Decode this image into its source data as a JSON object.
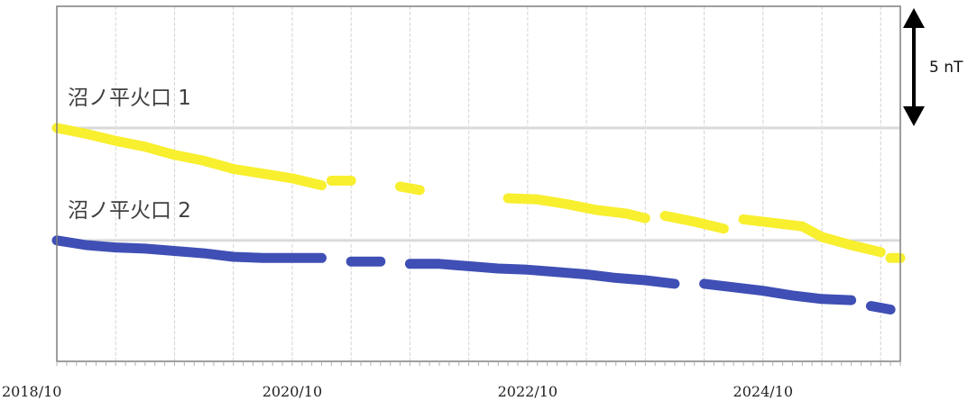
{
  "chart_data": {
    "type": "line",
    "x_axis": {
      "min": "2018/10",
      "max": "2025/12",
      "tick_labels": [
        "2018/10",
        "2020/10",
        "2022/10",
        "2024/10"
      ],
      "minor_ticks": "monthly",
      "major_ticks": "every 6 months"
    },
    "grid": true,
    "scale_bar": {
      "label": "5 nT",
      "value": 5,
      "unit": "nT"
    },
    "series": [
      {
        "name": "沼ノ平火口 1",
        "color": "#f8ef2e",
        "baseline_nT": 0,
        "segments": [
          [
            [
              "2018/10",
              0.0
            ],
            [
              "2019/01",
              -0.25
            ],
            [
              "2019/04",
              -0.55
            ],
            [
              "2019/07",
              -0.8
            ],
            [
              "2019/10",
              -1.15
            ],
            [
              "2020/01",
              -1.4
            ],
            [
              "2020/04",
              -1.75
            ],
            [
              "2020/07",
              -1.95
            ],
            [
              "2020/10",
              -2.15
            ],
            [
              "2021/01",
              -2.45
            ]
          ],
          [
            [
              "2021/02",
              -2.25
            ],
            [
              "2021/04",
              -2.25
            ]
          ],
          [
            [
              "2021/09",
              -2.5
            ],
            [
              "2021/11",
              -2.65
            ]
          ],
          [
            [
              "2022/08",
              -3.0
            ],
            [
              "2022/11",
              -3.05
            ],
            [
              "2023/02",
              -3.25
            ],
            [
              "2023/05",
              -3.5
            ],
            [
              "2023/08",
              -3.65
            ],
            [
              "2023/10",
              -3.85
            ]
          ],
          [
            [
              "2023/12",
              -3.75
            ],
            [
              "2024/03",
              -4.0
            ],
            [
              "2024/06",
              -4.3
            ]
          ],
          [
            [
              "2024/08",
              -3.9
            ],
            [
              "2024/11",
              -4.05
            ],
            [
              "2025/02",
              -4.2
            ],
            [
              "2025/04",
              -4.65
            ],
            [
              "2025/07",
              -5.0
            ],
            [
              "2025/10",
              -5.3
            ]
          ],
          [
            [
              "2025/11",
              -5.55
            ],
            [
              "2025/12",
              -5.55
            ]
          ]
        ]
      },
      {
        "name": "沼ノ平火口 2",
        "color": "#3f4fb5",
        "baseline_nT": -4.8,
        "segments": [
          [
            [
              "2018/10",
              -4.8
            ],
            [
              "2019/01",
              -5.0
            ],
            [
              "2019/04",
              -5.1
            ],
            [
              "2019/07",
              -5.15
            ],
            [
              "2019/10",
              -5.25
            ],
            [
              "2020/01",
              -5.35
            ],
            [
              "2020/04",
              -5.5
            ],
            [
              "2020/07",
              -5.55
            ],
            [
              "2020/10",
              -5.55
            ],
            [
              "2021/01",
              -5.55
            ]
          ],
          [
            [
              "2021/04",
              -5.7
            ],
            [
              "2021/07",
              -5.7
            ]
          ],
          [
            [
              "2021/10",
              -5.8
            ],
            [
              "2022/01",
              -5.8
            ],
            [
              "2022/04",
              -5.9
            ],
            [
              "2022/07",
              -6.0
            ],
            [
              "2022/10",
              -6.05
            ],
            [
              "2023/01",
              -6.15
            ],
            [
              "2023/04",
              -6.25
            ],
            [
              "2023/07",
              -6.4
            ],
            [
              "2023/10",
              -6.5
            ],
            [
              "2024/01",
              -6.65
            ]
          ],
          [
            [
              "2024/04",
              -6.65
            ],
            [
              "2024/07",
              -6.8
            ],
            [
              "2024/10",
              -6.95
            ],
            [
              "2025/01",
              -7.15
            ],
            [
              "2025/04",
              -7.3
            ],
            [
              "2025/07",
              -7.35
            ]
          ],
          [
            [
              "2025/09",
              -7.6
            ],
            [
              "2025/11",
              -7.75
            ]
          ]
        ]
      }
    ]
  }
}
